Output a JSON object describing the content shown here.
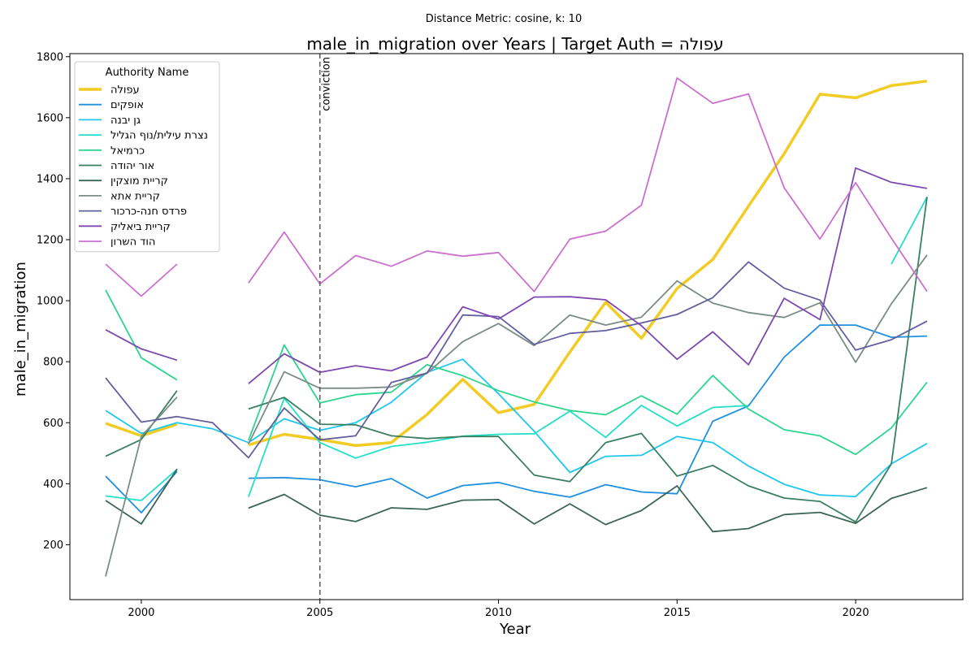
{
  "chart_data": {
    "type": "line",
    "suptitle": "Distance Metric: cosine, k: 10",
    "title": "male_in_migration over Years | Target Auth = עפולה",
    "xlabel": "Year",
    "ylabel": "male_in_migration",
    "xlim": [
      1998,
      2023
    ],
    "ylim": [
      20,
      1810
    ],
    "xticks": [
      2000,
      2005,
      2010,
      2015,
      2020
    ],
    "yticks": [
      200,
      400,
      600,
      800,
      1000,
      1200,
      1400,
      1600,
      1800
    ],
    "grid": false,
    "legend": {
      "title": "Authority Name",
      "placement": "top-left"
    },
    "annotations": [
      {
        "x": 2005,
        "label": "conviction",
        "style": "dashed-vertical"
      }
    ],
    "x": [
      1999,
      2000,
      2001,
      2002,
      2003,
      2004,
      2005,
      2006,
      2007,
      2008,
      2009,
      2010,
      2011,
      2012,
      2013,
      2014,
      2015,
      2016,
      2017,
      2018,
      2019,
      2020,
      2021,
      2022
    ],
    "series": [
      {
        "name": "עפולה",
        "color": "#f2cc24",
        "width": 3.5,
        "values": [
          598,
          557,
          595,
          null,
          527,
          562,
          545,
          525,
          535,
          627,
          742,
          633,
          660,
          832,
          995,
          877,
          1040,
          1135,
          1310,
          1482,
          1677,
          1665,
          1705,
          1720
        ]
      },
      {
        "name": "אופקים",
        "color": "#2090e0",
        "width": 1.8,
        "values": [
          425,
          305,
          440,
          null,
          418,
          420,
          413,
          390,
          417,
          353,
          394,
          404,
          375,
          356,
          397,
          373,
          367,
          605,
          655,
          815,
          920,
          920,
          880,
          884
        ]
      },
      {
        "name": "גן יבנה",
        "color": "#1ec8ec",
        "width": 1.8,
        "values": [
          640,
          565,
          600,
          580,
          535,
          613,
          575,
          600,
          667,
          765,
          808,
          695,
          572,
          437,
          490,
          493,
          555,
          535,
          458,
          398,
          363,
          358,
          465,
          532
        ]
      },
      {
        "name": "נצרת עילית/נוף הגליל",
        "color": "#20e0c8",
        "width": 1.8,
        "values": [
          360,
          345,
          447,
          null,
          357,
          680,
          535,
          484,
          522,
          536,
          556,
          562,
          564,
          638,
          552,
          657,
          589,
          650,
          656,
          null,
          null,
          null,
          1120,
          1340
        ]
      },
      {
        "name": "כרמיאל",
        "color": "#2cd68e",
        "width": 1.8,
        "values": [
          1035,
          813,
          740,
          null,
          542,
          855,
          665,
          692,
          700,
          790,
          754,
          705,
          668,
          640,
          626,
          688,
          628,
          755,
          645,
          577,
          557,
          496,
          583,
          733
        ]
      },
      {
        "name": "אור יהודה",
        "color": "#3a8060",
        "width": 1.8,
        "values": [
          490,
          545,
          705,
          null,
          645,
          683,
          595,
          593,
          557,
          548,
          555,
          555,
          428,
          407,
          535,
          565,
          425,
          460,
          393,
          353,
          342,
          275,
          465,
          1340
        ]
      },
      {
        "name": "קריית מוצקין",
        "color": "#3d6657",
        "width": 1.8,
        "values": [
          345,
          268,
          448,
          null,
          320,
          365,
          297,
          276,
          321,
          316,
          346,
          348,
          268,
          334,
          266,
          312,
          393,
          243,
          253,
          299,
          306,
          270,
          352,
          387
        ]
      },
      {
        "name": "קריית אתא",
        "color": "#7c8c86",
        "width": 1.8,
        "values": [
          96,
          555,
          684,
          null,
          530,
          767,
          713,
          713,
          717,
          762,
          866,
          925,
          853,
          953,
          920,
          946,
          1065,
          992,
          961,
          945,
          993,
          798,
          990,
          1150
        ]
      },
      {
        "name": "פרדס חנה-כרכור",
        "color": "#62609e",
        "width": 1.8,
        "values": [
          747,
          602,
          620,
          600,
          485,
          648,
          544,
          557,
          732,
          763,
          953,
          948,
          857,
          893,
          902,
          927,
          955,
          1010,
          1127,
          1041,
          1002,
          838,
          872,
          933
        ]
      },
      {
        "name": "קריית ביאליק",
        "color": "#7e48b0",
        "width": 1.8,
        "values": [
          905,
          842,
          805,
          null,
          728,
          826,
          765,
          787,
          770,
          815,
          980,
          940,
          1012,
          1013,
          1003,
          918,
          808,
          898,
          790,
          1008,
          938,
          1435,
          1388,
          1368
        ]
      },
      {
        "name": "הוד השרון",
        "color": "#cc70d0",
        "width": 1.8,
        "values": [
          1120,
          1015,
          1120,
          null,
          1058,
          1225,
          1055,
          1148,
          1113,
          1163,
          1146,
          1158,
          1030,
          1202,
          1228,
          1313,
          1730,
          1647,
          1678,
          1370,
          1202,
          1387,
          1205,
          1030
        ]
      }
    ]
  }
}
